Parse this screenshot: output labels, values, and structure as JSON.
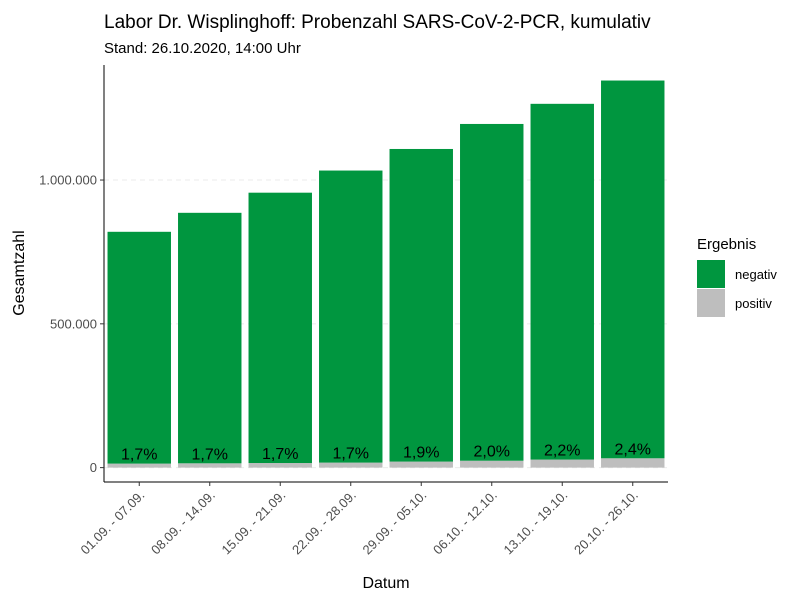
{
  "chart_data": {
    "type": "bar",
    "stacked": true,
    "title": "Labor Dr. Wisplinghoff: Probenzahl SARS-CoV-2-PCR, kumulativ",
    "subtitle": "Stand: 26.10.2020, 14:00 Uhr",
    "xlabel": "Datum",
    "ylabel": "Gesamtzahl",
    "ylim": [
      -50000,
      1400000
    ],
    "yticks": [
      0,
      500000,
      1000000
    ],
    "ytick_labels": [
      "0",
      "500.000",
      "1.000.000"
    ],
    "grid": "horizontal dashed",
    "categories": [
      "01.09. - 07.09.",
      "08.09. - 14.09.",
      "15.09. - 21.09.",
      "22.09. - 28.09.",
      "29.09. - 05.10.",
      "06.10. - 12.10.",
      "13.10. - 19.10.",
      "20.10. - 26.10."
    ],
    "series": [
      {
        "name": "positiv",
        "color": "#bebebe",
        "values": [
          14000,
          15000,
          16000,
          17500,
          21000,
          24000,
          28000,
          32500
        ]
      },
      {
        "name": "negativ",
        "color": "#00963f",
        "values": [
          806000,
          871000,
          940000,
          1015500,
          1087000,
          1171000,
          1237000,
          1313500
        ]
      }
    ],
    "data_labels": [
      "1,7%",
      "1,7%",
      "1,7%",
      "1,7%",
      "1,9%",
      "2,0%",
      "2,2%",
      "2,4%"
    ],
    "legend": {
      "title": "Ergebnis",
      "position": "right",
      "items": [
        {
          "label": "negativ",
          "color": "#00963f"
        },
        {
          "label": "positiv",
          "color": "#bebebe"
        }
      ]
    }
  }
}
